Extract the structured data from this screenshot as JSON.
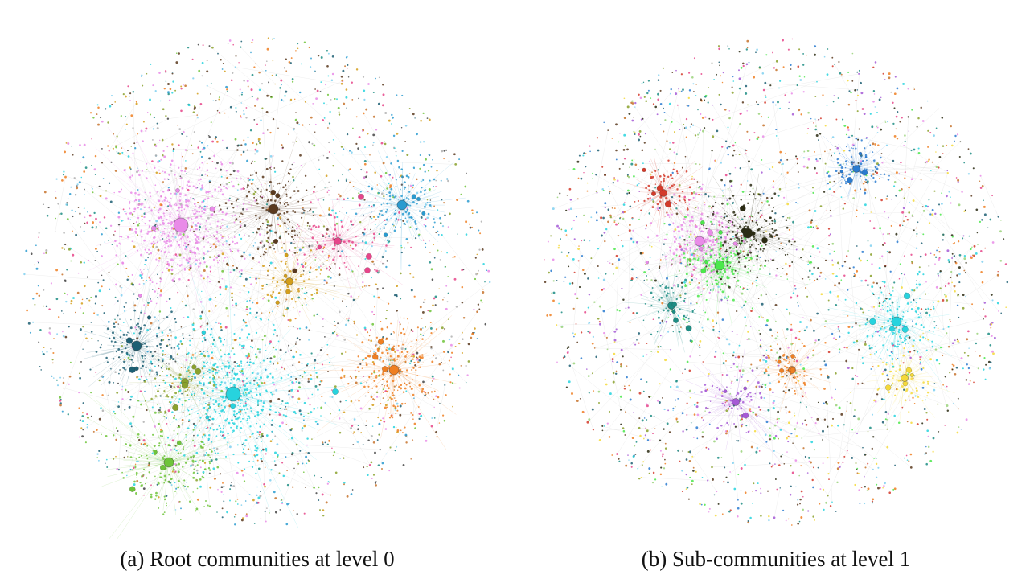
{
  "figure": {
    "panels": [
      {
        "caption": "(a) Root communities at level 0",
        "palette": [
          "#e98be8",
          "#27d3de",
          "#ef7f22",
          "#6ec43a",
          "#5a3a1f",
          "#1d5f73",
          "#2a9bd0",
          "#e6458a",
          "#d39e1b",
          "#8aa12c",
          "#7fd0f0",
          "#444444",
          "#b0b0b0",
          "#c7732d",
          "#1d8d84"
        ],
        "clusters": [
          {
            "color": "#e98be8",
            "density": 1.0,
            "size": "large"
          },
          {
            "color": "#27d3de",
            "density": 0.95,
            "size": "large"
          },
          {
            "color": "#ef7f22",
            "density": 0.7,
            "size": "medium"
          },
          {
            "color": "#6ec43a",
            "density": 0.6,
            "size": "medium"
          },
          {
            "color": "#5a3a1f",
            "density": 0.5,
            "size": "medium"
          },
          {
            "color": "#1d5f73",
            "density": 0.45,
            "size": "medium"
          },
          {
            "color": "#2a9bd0",
            "density": 0.45,
            "size": "medium"
          },
          {
            "color": "#e6458a",
            "density": 0.45,
            "size": "small"
          },
          {
            "color": "#d39e1b",
            "density": 0.45,
            "size": "small"
          },
          {
            "color": "#8aa12c",
            "density": 0.4,
            "size": "small"
          }
        ]
      },
      {
        "caption": "(b) Sub-communities at level 1",
        "palette": [
          "#e98be8",
          "#4be84b",
          "#2a2a12",
          "#2a7bd0",
          "#e6458a",
          "#8aa12c",
          "#f4d93a",
          "#27d3de",
          "#1d8d84",
          "#d33a2a",
          "#7fd0f0",
          "#ef7f22",
          "#a65ad6",
          "#5a3a1f",
          "#1d5f73",
          "#c7732d",
          "#9ad27a"
        ],
        "clusters": [
          {
            "color": "#e98be8",
            "density": 0.6,
            "size": "medium"
          },
          {
            "color": "#4be84b",
            "density": 0.6,
            "size": "medium"
          },
          {
            "color": "#2a2a12",
            "density": 0.6,
            "size": "medium"
          },
          {
            "color": "#2a7bd0",
            "density": 0.5,
            "size": "small"
          },
          {
            "color": "#f4d93a",
            "density": 0.4,
            "size": "small"
          },
          {
            "color": "#27d3de",
            "density": 0.5,
            "size": "medium"
          },
          {
            "color": "#d33a2a",
            "density": 0.4,
            "size": "small"
          },
          {
            "color": "#a65ad6",
            "density": 0.4,
            "size": "small"
          },
          {
            "color": "#ef7f22",
            "density": 0.4,
            "size": "small"
          },
          {
            "color": "#1d8d84",
            "density": 0.4,
            "size": "small"
          }
        ]
      }
    ]
  }
}
